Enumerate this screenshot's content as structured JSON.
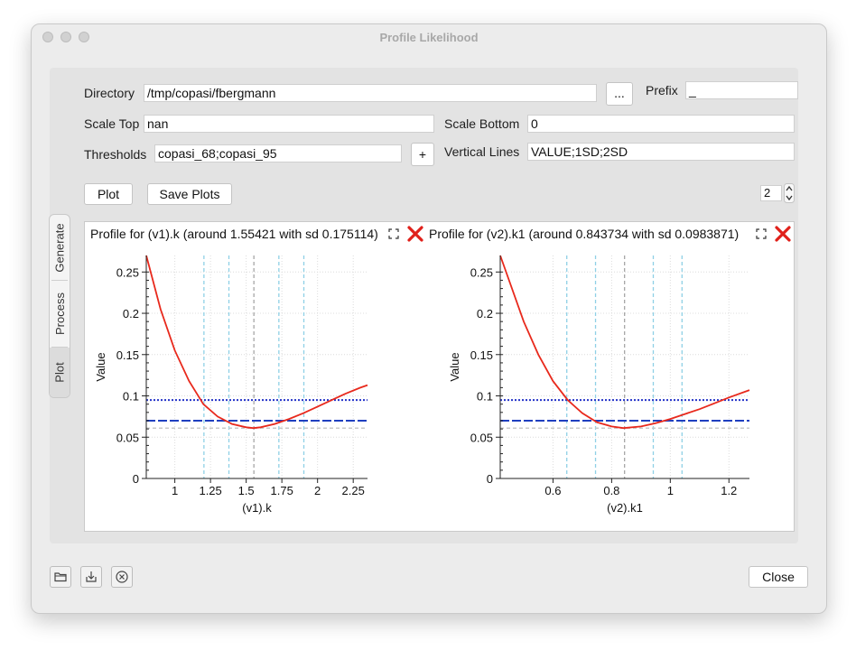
{
  "window": {
    "title": "Profile Likelihood"
  },
  "form": {
    "directory_label": "Directory",
    "directory_value": "/tmp/copasi/fbergmann",
    "browse_label": "...",
    "prefix_label": "Prefix",
    "prefix_value": "_",
    "scale_top_label": "Scale Top",
    "scale_top_value": "nan",
    "scale_bottom_label": "Scale Bottom",
    "scale_bottom_value": "0",
    "thresholds_label": "Thresholds",
    "thresholds_value": "copasi_68;copasi_95",
    "add_label": "+",
    "vertical_lines_label": "Vertical Lines",
    "vertical_lines_value": "VALUE;1SD;2SD"
  },
  "toolbar": {
    "plot_label": "Plot",
    "save_plots_label": "Save Plots",
    "columns_value": "2"
  },
  "tabs": [
    {
      "label": "Generate"
    },
    {
      "label": "Process"
    },
    {
      "label": "Plot"
    }
  ],
  "footer": {
    "close_label": "Close"
  },
  "colors": {
    "curve": "#e8291c",
    "threshold_68": "#2433c8",
    "threshold_95": "#1f3fbf",
    "vline_sd": "#8fd0e6",
    "vline_value": "#a7a7a7",
    "baseline": "#c8c8c8"
  },
  "plots": [
    {
      "title": "Profile for (v1).k (around 1.55421 with sd 0.175114)",
      "xlabel": "(v1).k",
      "ylabel": "Value"
    },
    {
      "title": "Profile for (v2).k1 (around 0.843734 with sd 0.0983871)",
      "xlabel": "(v2).k1",
      "ylabel": "Value"
    }
  ],
  "chart_data": [
    {
      "type": "line",
      "title": "Profile for (v1).k (around 1.55421 with sd 0.175114)",
      "xlabel": "(v1).k",
      "ylabel": "Value",
      "xlim": [
        0.8,
        2.35
      ],
      "ylim": [
        0,
        0.27
      ],
      "xticks": [
        "1",
        "1.25",
        "1.5",
        "1.75",
        "2",
        "2.25"
      ],
      "yticks": [
        "0",
        "0.05",
        "0.1",
        "0.15",
        "0.2",
        "0.25"
      ],
      "grid": true,
      "series": [
        {
          "x": [
            0.8,
            0.9,
            1.0,
            1.1,
            1.2,
            1.3,
            1.4,
            1.5,
            1.55,
            1.6,
            1.7,
            1.8,
            1.9,
            2.0,
            2.1,
            2.2,
            2.3,
            2.35
          ],
          "y": [
            0.27,
            0.205,
            0.155,
            0.118,
            0.09,
            0.075,
            0.066,
            0.062,
            0.061,
            0.062,
            0.066,
            0.072,
            0.079,
            0.087,
            0.095,
            0.103,
            0.11,
            0.113
          ]
        }
      ],
      "hlines": [
        {
          "y": 0.095,
          "style": "dotted"
        },
        {
          "y": 0.07,
          "style": "dashed"
        },
        {
          "y": 0.061,
          "style": "baseline"
        }
      ],
      "vlines": [
        {
          "x": 1.204,
          "kind": "sd"
        },
        {
          "x": 1.379,
          "kind": "sd"
        },
        {
          "x": 1.554,
          "kind": "value"
        },
        {
          "x": 1.729,
          "kind": "sd"
        },
        {
          "x": 1.904,
          "kind": "sd"
        }
      ]
    },
    {
      "type": "line",
      "title": "Profile for (v2).k1 (around 0.843734 with sd 0.0983871)",
      "xlabel": "(v2).k1",
      "ylabel": "Value",
      "xlim": [
        0.42,
        1.27
      ],
      "ylim": [
        0,
        0.27
      ],
      "xticks": [
        "0.6",
        "0.8",
        "1",
        "1.2"
      ],
      "yticks": [
        "0",
        "0.05",
        "0.1",
        "0.15",
        "0.2",
        "0.25"
      ],
      "grid": true,
      "series": [
        {
          "x": [
            0.42,
            0.5,
            0.55,
            0.6,
            0.65,
            0.7,
            0.75,
            0.8,
            0.84,
            0.9,
            0.95,
            1.0,
            1.05,
            1.1,
            1.15,
            1.2,
            1.27
          ],
          "y": [
            0.27,
            0.19,
            0.15,
            0.118,
            0.095,
            0.079,
            0.068,
            0.063,
            0.061,
            0.063,
            0.067,
            0.072,
            0.078,
            0.084,
            0.091,
            0.098,
            0.107
          ]
        }
      ],
      "hlines": [
        {
          "y": 0.095,
          "style": "dotted"
        },
        {
          "y": 0.07,
          "style": "dashed"
        },
        {
          "y": 0.061,
          "style": "baseline"
        }
      ],
      "vlines": [
        {
          "x": 0.647,
          "kind": "sd"
        },
        {
          "x": 0.745,
          "kind": "sd"
        },
        {
          "x": 0.844,
          "kind": "value"
        },
        {
          "x": 0.942,
          "kind": "sd"
        },
        {
          "x": 1.04,
          "kind": "sd"
        }
      ]
    }
  ]
}
